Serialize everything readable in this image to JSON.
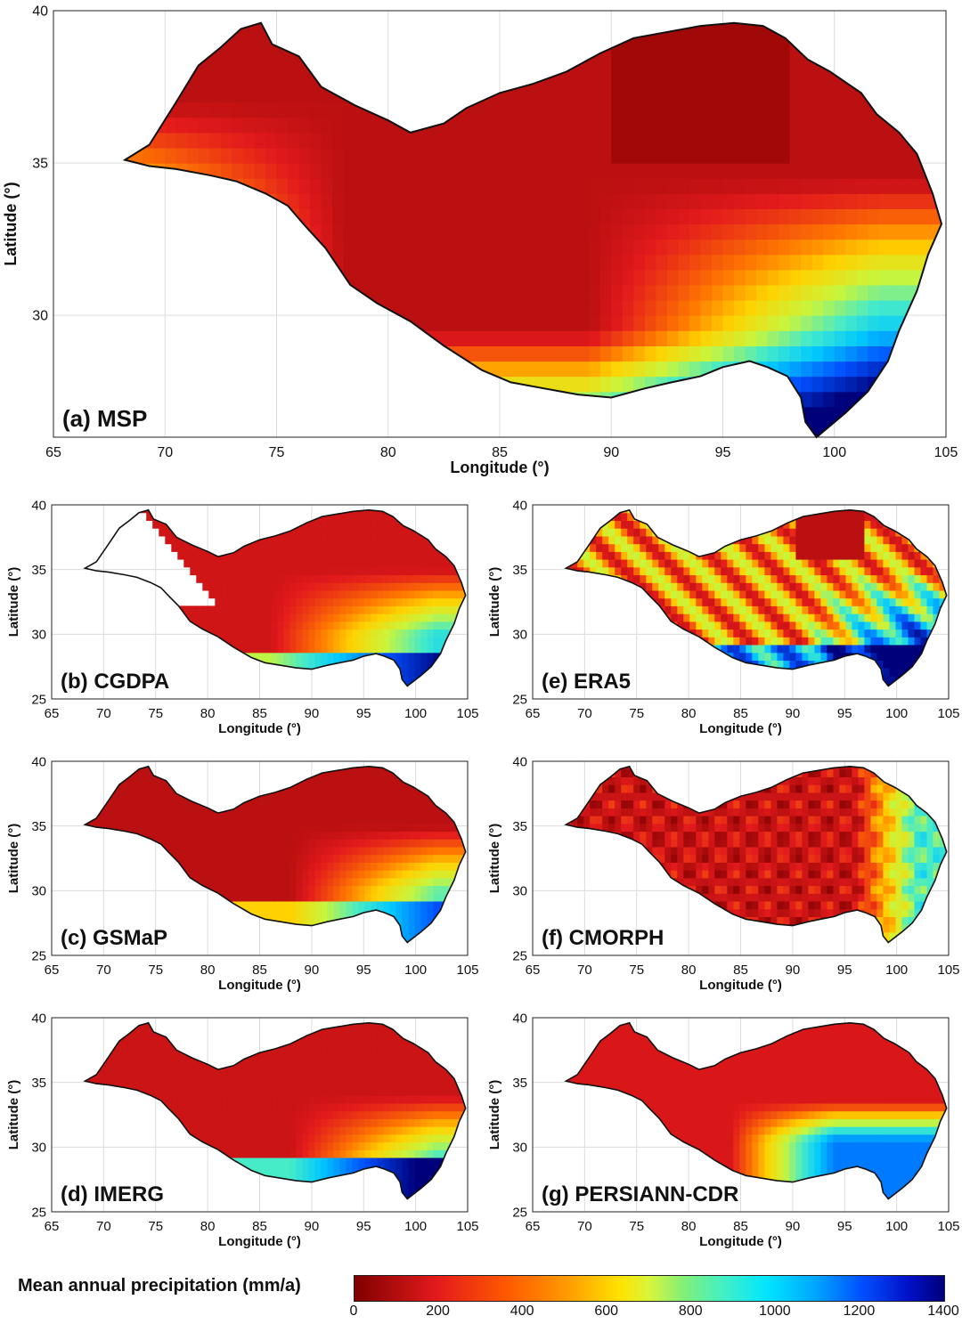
{
  "colors": {
    "scale": [
      "#800000",
      "#e31a1c",
      "#ff5a00",
      "#ff9a00",
      "#ffe300",
      "#7ff07a",
      "#00e5ff",
      "#0050ff",
      "#00007a"
    ]
  },
  "axes": {
    "xlabel": "Longitude (°)",
    "ylabel": "Latitude (°)",
    "xlim": [
      65,
      105
    ],
    "xticks": [
      65,
      70,
      75,
      80,
      85,
      90,
      95,
      100,
      105
    ],
    "ylim_main": [
      26,
      40
    ],
    "yticks_main": [
      30,
      35,
      40
    ],
    "ylim_small": [
      25,
      40
    ],
    "yticks_small": [
      25,
      30,
      35,
      40
    ]
  },
  "panels": [
    {
      "id": "a",
      "label": "(a) MSP"
    },
    {
      "id": "b",
      "label": "(b) CGDPA"
    },
    {
      "id": "e",
      "label": "(e) ERA5"
    },
    {
      "id": "c",
      "label": "(c) GSMaP"
    },
    {
      "id": "f",
      "label": "(f) CMORPH"
    },
    {
      "id": "d",
      "label": "(d) IMERG"
    },
    {
      "id": "g",
      "label": "(g) PERSIANN-CDR"
    }
  ],
  "colorbar": {
    "title": "Mean annual precipitation (mm/a)",
    "ticks": [
      0,
      200,
      400,
      600,
      800,
      1000,
      1200,
      1400
    ],
    "min": 0,
    "max": 1400
  }
}
